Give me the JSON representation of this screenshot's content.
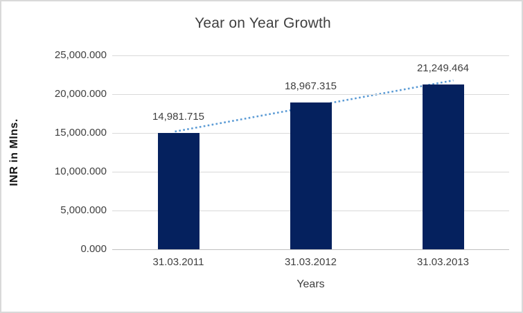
{
  "chart_data": {
    "type": "bar",
    "title": "Year on Year Growth",
    "xlabel": "Years",
    "ylabel": "INR in Mlns.",
    "categories": [
      "31.03.2011",
      "31.03.2012",
      "31.03.2013"
    ],
    "values": [
      14981.715,
      18967.315,
      21249.464
    ],
    "data_labels": [
      "14,981.715",
      "18,967.315",
      "21,249.464"
    ],
    "y_ticks": [
      {
        "value": 25000,
        "label": "25,000.000"
      },
      {
        "value": 20000,
        "label": "20,000.000"
      },
      {
        "value": 15000,
        "label": "15,000.000"
      },
      {
        "value": 10000,
        "label": "10,000.000"
      },
      {
        "value": 5000,
        "label": "5,000.000"
      },
      {
        "value": 0,
        "label": "0.000"
      }
    ],
    "ylim": [
      0,
      25000
    ],
    "grid": true,
    "legend": false,
    "trendline": {
      "type": "linear",
      "style": "dotted"
    },
    "colors": {
      "bar": "#05215e",
      "trendline": "#5b9bd5",
      "gridline": "#d9d9d9",
      "axis_line": "#bfbfbf",
      "text": "#3f3f3f",
      "frame_border": "#d9d9d9",
      "background": "#ffffff"
    }
  }
}
